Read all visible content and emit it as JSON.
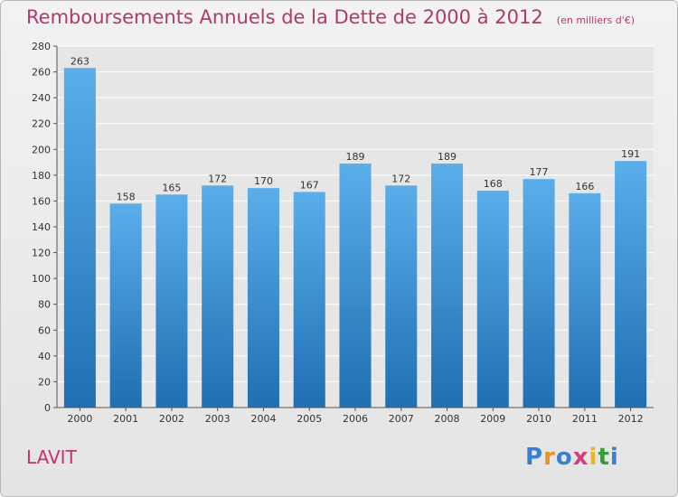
{
  "title": "Remboursements Annuels de la Dette de 2000 à 2012",
  "unit": "(en milliers d'€)",
  "commune": "LAVIT",
  "logo": {
    "text": "Proxiti",
    "letters": [
      {
        "char": "P",
        "color": "#3a7fd1"
      },
      {
        "char": "r",
        "color": "#e8941c"
      },
      {
        "char": "o",
        "color": "#3a7fd1"
      },
      {
        "char": "x",
        "color": "#d63c7a"
      },
      {
        "char": "i",
        "color": "#f2b21c"
      },
      {
        "char": "t",
        "color": "#3a9a3e"
      },
      {
        "char": "i",
        "color": "#3a7fd1"
      }
    ]
  },
  "colors": {
    "bar_top": "#5aaeea",
    "bar_bottom": "#1f6fb2",
    "title": "#b03a6a",
    "axis": "#555555"
  },
  "chart_data": {
    "type": "bar",
    "categories": [
      "2000",
      "2001",
      "2002",
      "2003",
      "2004",
      "2005",
      "2006",
      "2007",
      "2008",
      "2009",
      "2010",
      "2011",
      "2012"
    ],
    "values": [
      263,
      158,
      165,
      172,
      170,
      167,
      189,
      172,
      189,
      168,
      177,
      166,
      191
    ],
    "ylim": [
      0,
      280
    ],
    "yticks": [
      0,
      20,
      40,
      60,
      80,
      100,
      120,
      140,
      160,
      180,
      200,
      220,
      240,
      260,
      280
    ],
    "grid": true,
    "data_labels": true
  }
}
